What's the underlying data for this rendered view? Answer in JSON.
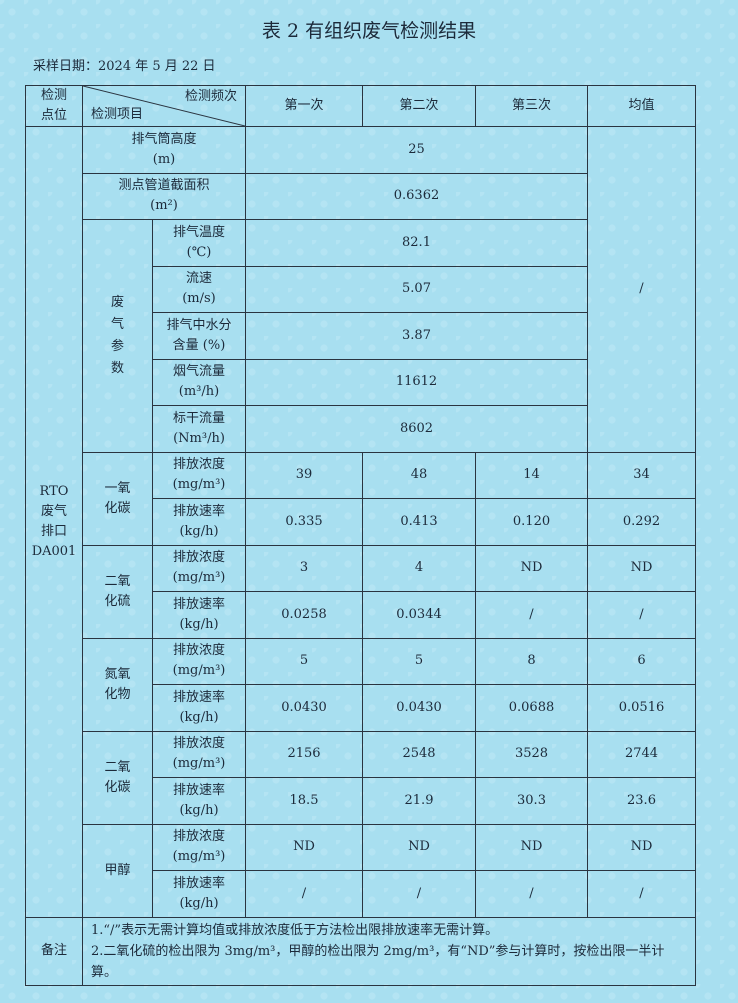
{
  "title": "表 2  有组织废气检测结果",
  "sampling_date": "采样日期：2024 年 5 月 22 日",
  "header": {
    "location": "检测点位",
    "frequency": "检测频次",
    "item": "检测项目",
    "runs": [
      "第一次",
      "第二次",
      "第三次"
    ],
    "average": "均值"
  },
  "location_name": "RTO\n废气\n排口\nDA001",
  "general_rows": [
    {
      "item": "排气筒高度",
      "unit": "(m)",
      "value": "25"
    },
    {
      "item": "测点管道截面积",
      "unit": "(m²)",
      "value": "0.6362"
    }
  ],
  "exhaust_params": {
    "category": "废气参数",
    "rows": [
      {
        "item": "排气温度",
        "unit": "(℃)",
        "value": "82.1"
      },
      {
        "item": "流速",
        "unit": "(m/s)",
        "value": "5.07"
      },
      {
        "item": "排气中水分",
        "unit": "含量 (%)",
        "value": "3.87"
      },
      {
        "item": "烟气流量",
        "unit": "(m³/h)",
        "value": "11612"
      },
      {
        "item": "标干流量",
        "unit": "(Nm³/h)",
        "value": "8602"
      }
    ],
    "average": "/"
  },
  "pollutants": [
    {
      "name": "一氧\n化碳",
      "rows": [
        {
          "item": "排放浓度",
          "unit": "(mg/m³)",
          "values": [
            "39",
            "48",
            "14",
            "34"
          ]
        },
        {
          "item": "排放速率",
          "unit": "(kg/h)",
          "values": [
            "0.335",
            "0.413",
            "0.120",
            "0.292"
          ]
        }
      ]
    },
    {
      "name": "二氧\n化硫",
      "rows": [
        {
          "item": "排放浓度",
          "unit": "(mg/m³)",
          "values": [
            "3",
            "4",
            "ND",
            "ND"
          ]
        },
        {
          "item": "排放速率",
          "unit": "(kg/h)",
          "values": [
            "0.0258",
            "0.0344",
            "/",
            "/"
          ]
        }
      ]
    },
    {
      "name": "氮氧\n化物",
      "rows": [
        {
          "item": "排放浓度",
          "unit": "(mg/m³)",
          "values": [
            "5",
            "5",
            "8",
            "6"
          ]
        },
        {
          "item": "排放速率",
          "unit": "(kg/h)",
          "values": [
            "0.0430",
            "0.0430",
            "0.0688",
            "0.0516"
          ]
        }
      ]
    },
    {
      "name": "二氧\n化碳",
      "rows": [
        {
          "item": "排放浓度",
          "unit": "(mg/m³)",
          "values": [
            "2156",
            "2548",
            "3528",
            "2744"
          ]
        },
        {
          "item": "排放速率",
          "unit": "(kg/h)",
          "values": [
            "18.5",
            "21.9",
            "30.3",
            "23.6"
          ]
        }
      ]
    },
    {
      "name": "甲醇",
      "rows": [
        {
          "item": "排放浓度",
          "unit": "(mg/m³)",
          "values": [
            "ND",
            "ND",
            "ND",
            "ND"
          ]
        },
        {
          "item": "排放速率",
          "unit": "(kg/h)",
          "values": [
            "/",
            "/",
            "/",
            "/"
          ]
        }
      ]
    }
  ],
  "notes": {
    "label": "备注",
    "lines": [
      "1.“/”表示无需计算均值或排放浓度低于方法检出限排放速率无需计算。",
      "2.二氧化硫的检出限为 3mg/m³，甲醇的检出限为 2mg/m³，有“ND”参与计算时，按检出限一半计算。"
    ]
  }
}
